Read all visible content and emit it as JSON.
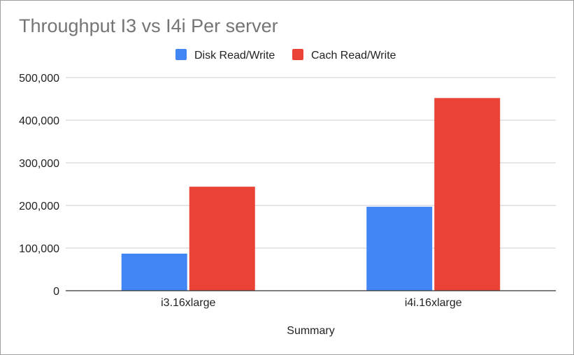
{
  "chart_data": {
    "type": "bar",
    "title": "Throughput I3 vs I4i Per server",
    "xlabel": "Summary",
    "ylabel": "",
    "categories": [
      "i3.16xlarge",
      "i4i.16xlarge"
    ],
    "series": [
      {
        "name": "Disk Read/Write",
        "color": "#4285f4",
        "values": [
          87000,
          197000
        ]
      },
      {
        "name": "Cach Read/Write",
        "color": "#ea4335",
        "values": [
          244000,
          452000
        ]
      }
    ],
    "ylim": [
      0,
      500000
    ],
    "yticks": [
      0,
      100000,
      200000,
      300000,
      400000,
      500000
    ],
    "ytick_labels": [
      "0",
      "100,000",
      "200,000",
      "300,000",
      "400,000",
      "500,000"
    ],
    "grid": true,
    "legend_position": "top-center"
  }
}
